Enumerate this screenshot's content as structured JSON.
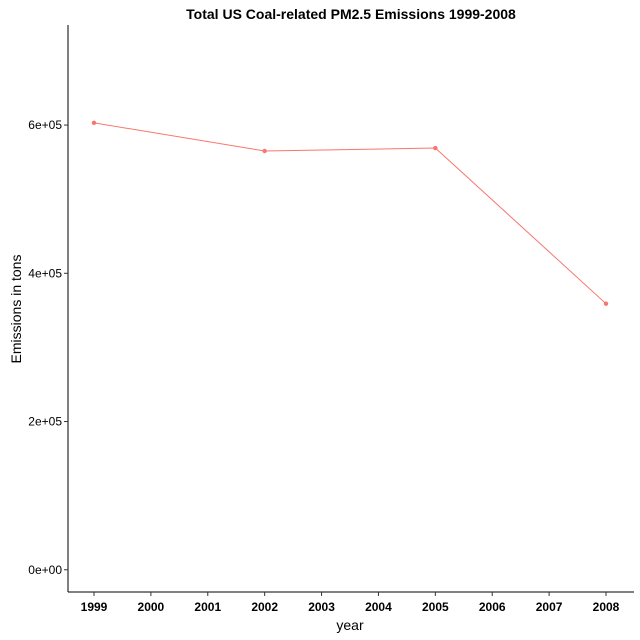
{
  "chart_data": {
    "type": "line",
    "title": "Total US Coal-related PM2.5 Emissions 1999-2008",
    "xlabel": "year",
    "ylabel": "Emissions in tons",
    "x_ticks": [
      "1999",
      "2000",
      "2001",
      "2002",
      "2003",
      "2004",
      "2005",
      "2006",
      "2007",
      "2008"
    ],
    "y_ticks": [
      "0e+00",
      "2e+05",
      "4e+05",
      "6e+05"
    ],
    "y_tick_values": [
      0,
      200000,
      400000,
      600000
    ],
    "xlim": [
      1999,
      2008
    ],
    "ylim": [
      -30000,
      735000
    ],
    "grid": false,
    "legend": "none",
    "series": [
      {
        "color": "#f8766d",
        "points": [
          {
            "x": 1999,
            "y": 603000
          },
          {
            "x": 2002,
            "y": 565000
          },
          {
            "x": 2005,
            "y": 569000
          },
          {
            "x": 2008,
            "y": 359000
          }
        ]
      }
    ]
  }
}
